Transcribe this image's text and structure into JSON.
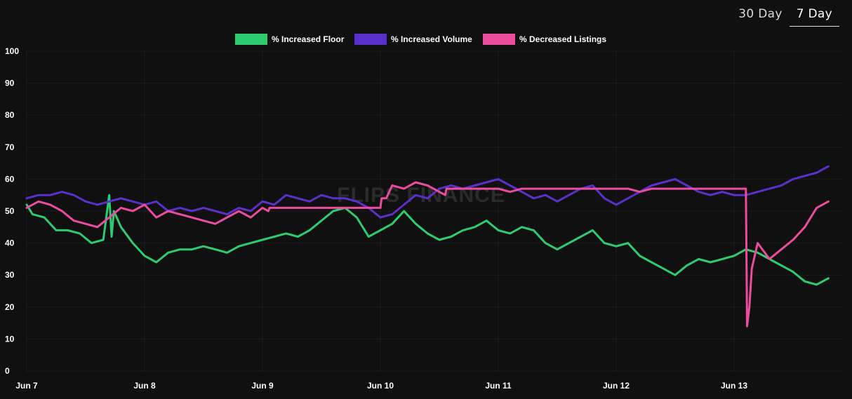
{
  "range_tabs": [
    {
      "label": "30 Day",
      "active": false
    },
    {
      "label": "7 Day",
      "active": true
    }
  ],
  "watermark": "FLIPS FINANCE",
  "chart_data": {
    "type": "line",
    "legend_position": "top-center",
    "grid": true,
    "ylim": [
      0,
      100
    ],
    "y_ticks": [
      "0",
      "10",
      "20",
      "30",
      "40",
      "50",
      "60",
      "70",
      "80",
      "90",
      "100"
    ],
    "x_ticks": [
      "Jun 7",
      "Jun 8",
      "Jun 9",
      "Jun 10",
      "Jun 11",
      "Jun 12",
      "Jun 13"
    ],
    "xlim": [
      0,
      6.8
    ],
    "series": [
      {
        "name": "% Increased Floor",
        "color": "#2ecc71",
        "x": [
          0,
          0.05,
          0.15,
          0.25,
          0.35,
          0.45,
          0.55,
          0.65,
          0.7,
          0.72,
          0.74,
          0.8,
          0.9,
          1.0,
          1.1,
          1.2,
          1.3,
          1.4,
          1.5,
          1.6,
          1.7,
          1.8,
          1.9,
          2.0,
          2.1,
          2.2,
          2.3,
          2.4,
          2.5,
          2.6,
          2.7,
          2.8,
          2.9,
          3.0,
          3.1,
          3.2,
          3.3,
          3.4,
          3.5,
          3.6,
          3.7,
          3.8,
          3.9,
          4.0,
          4.1,
          4.2,
          4.3,
          4.4,
          4.5,
          4.6,
          4.7,
          4.8,
          4.9,
          5.0,
          5.1,
          5.2,
          5.3,
          5.4,
          5.5,
          5.6,
          5.7,
          5.8,
          5.9,
          6.0,
          6.1,
          6.2,
          6.3,
          6.4,
          6.5,
          6.6,
          6.7,
          6.8
        ],
        "values": [
          52,
          49,
          48,
          44,
          44,
          43,
          40,
          41,
          55,
          42,
          50,
          45,
          40,
          36,
          34,
          37,
          38,
          38,
          39,
          38,
          37,
          39,
          40,
          41,
          42,
          43,
          42,
          44,
          47,
          50,
          51,
          48,
          42,
          44,
          46,
          50,
          46,
          43,
          41,
          42,
          44,
          45,
          47,
          44,
          43,
          45,
          44,
          40,
          38,
          40,
          42,
          44,
          40,
          39,
          40,
          36,
          34,
          32,
          30,
          33,
          35,
          34,
          35,
          36,
          38,
          37,
          35,
          33,
          31,
          28,
          27,
          29
        ]
      },
      {
        "name": "% Increased Volume",
        "color": "#5b2fc9",
        "x": [
          0,
          0.1,
          0.2,
          0.3,
          0.4,
          0.5,
          0.6,
          0.7,
          0.8,
          0.9,
          1.0,
          1.1,
          1.2,
          1.3,
          1.4,
          1.5,
          1.6,
          1.7,
          1.8,
          1.9,
          2.0,
          2.1,
          2.2,
          2.3,
          2.4,
          2.5,
          2.6,
          2.7,
          2.8,
          2.9,
          3.0,
          3.1,
          3.2,
          3.3,
          3.4,
          3.5,
          3.6,
          3.7,
          3.8,
          3.9,
          4.0,
          4.1,
          4.2,
          4.3,
          4.4,
          4.5,
          4.6,
          4.7,
          4.8,
          4.9,
          5.0,
          5.1,
          5.2,
          5.3,
          5.4,
          5.5,
          5.6,
          5.7,
          5.8,
          5.9,
          6.0,
          6.1,
          6.2,
          6.3,
          6.4,
          6.5,
          6.6,
          6.7,
          6.8
        ],
        "values": [
          54,
          55,
          55,
          56,
          55,
          53,
          52,
          53,
          54,
          53,
          52,
          53,
          50,
          51,
          50,
          51,
          50,
          49,
          51,
          50,
          53,
          52,
          55,
          54,
          53,
          55,
          54,
          54,
          53,
          51,
          48,
          49,
          52,
          55,
          54,
          57,
          58,
          57,
          58,
          59,
          60,
          58,
          56,
          54,
          55,
          53,
          55,
          57,
          58,
          54,
          52,
          54,
          56,
          58,
          59,
          60,
          58,
          56,
          55,
          56,
          55,
          55,
          56,
          57,
          58,
          60,
          61,
          62,
          64
        ]
      },
      {
        "name": "% Decreased Listings",
        "color": "#ea4c9e",
        "x": [
          0,
          0.1,
          0.2,
          0.3,
          0.4,
          0.5,
          0.6,
          0.7,
          0.8,
          0.9,
          1.0,
          1.1,
          1.2,
          1.3,
          1.4,
          1.5,
          1.6,
          1.7,
          1.8,
          1.9,
          2.0,
          2.05,
          2.06,
          3.0,
          3.01,
          3.05,
          3.1,
          3.2,
          3.3,
          3.4,
          3.5,
          3.55,
          3.56,
          4.0,
          4.1,
          4.2,
          4.3,
          5.0,
          5.1,
          5.2,
          5.3,
          5.31,
          5.6,
          5.7,
          6.1,
          6.11,
          6.13,
          6.15,
          6.2,
          6.3,
          6.4,
          6.5,
          6.6,
          6.7,
          6.8
        ],
        "values": [
          51,
          53,
          52,
          50,
          47,
          46,
          45,
          48,
          51,
          50,
          52,
          48,
          50,
          49,
          48,
          47,
          46,
          48,
          50,
          48,
          51,
          50,
          51,
          51,
          54,
          54,
          58,
          57,
          59,
          58,
          56,
          55,
          57,
          57,
          56,
          57,
          57,
          57,
          57,
          56,
          57,
          57,
          57,
          57,
          57,
          14,
          20,
          32,
          40,
          35,
          38,
          41,
          45,
          51,
          53
        ]
      }
    ]
  }
}
